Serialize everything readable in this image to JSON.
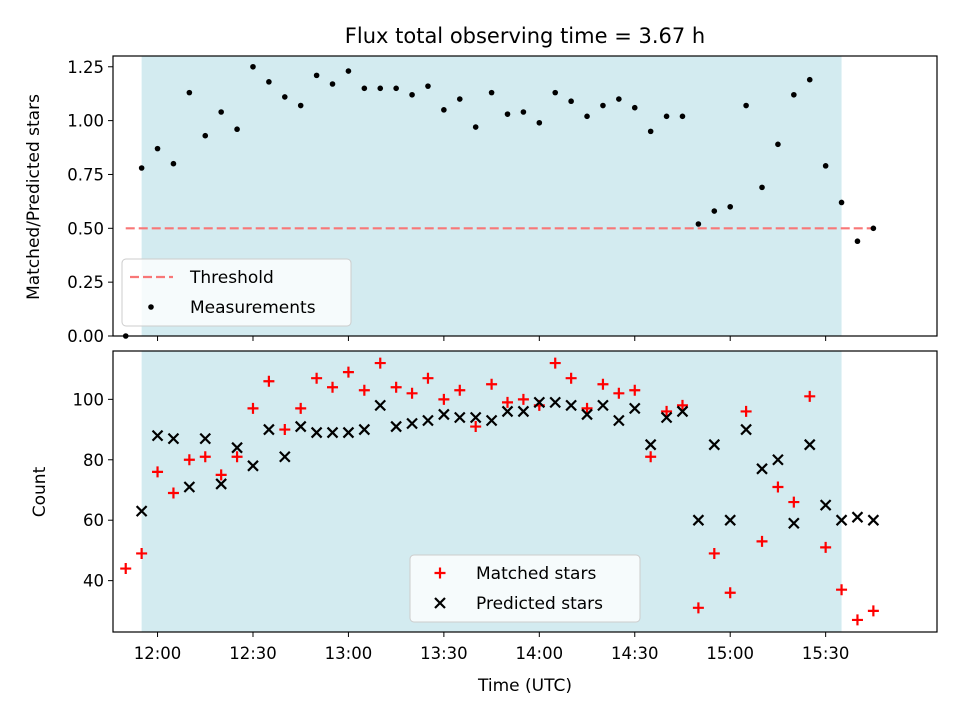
{
  "chart_data": [
    {
      "type": "scatter",
      "title": "Flux total observing time = 3.67 h",
      "xlabel": "",
      "ylabel": "Matched/Predicted stars",
      "xlim": [
        "11:46",
        "16:05"
      ],
      "ylim": [
        0,
        1.3
      ],
      "yticks": [
        "0.00",
        "0.25",
        "0.50",
        "0.75",
        "1.00",
        "1.25"
      ],
      "shaded_span": [
        "11:55",
        "15:35"
      ],
      "shaded_color": "#d3ebf0",
      "threshold": {
        "name": "Threshold",
        "y": 0.5,
        "x": [
          "11:50",
          "15:45"
        ],
        "color": "#f87777"
      },
      "series": [
        {
          "name": "Measurements",
          "color": "#000000",
          "x": [
            "11:50",
            "11:55",
            "12:00",
            "12:05",
            "12:10",
            "12:15",
            "12:20",
            "12:25",
            "12:30",
            "12:35",
            "12:40",
            "12:45",
            "12:50",
            "12:55",
            "13:00",
            "13:05",
            "13:10",
            "13:15",
            "13:20",
            "13:25",
            "13:30",
            "13:35",
            "13:40",
            "13:45",
            "13:50",
            "13:55",
            "14:00",
            "14:05",
            "14:10",
            "14:15",
            "14:20",
            "14:25",
            "14:30",
            "14:35",
            "14:40",
            "14:45",
            "14:50",
            "14:55",
            "15:00",
            "15:05",
            "15:10",
            "15:15",
            "15:20",
            "15:25",
            "15:30",
            "15:35",
            "15:40",
            "15:45"
          ],
          "y": [
            0.0,
            0.78,
            0.87,
            0.8,
            1.13,
            0.93,
            1.04,
            0.96,
            1.25,
            1.18,
            1.11,
            1.07,
            1.21,
            1.17,
            1.23,
            1.15,
            1.15,
            1.15,
            1.12,
            1.16,
            1.05,
            1.1,
            0.97,
            1.13,
            1.03,
            1.04,
            0.99,
            1.13,
            1.09,
            1.02,
            1.07,
            1.1,
            1.06,
            0.95,
            1.02,
            1.02,
            0.52,
            0.58,
            0.6,
            1.07,
            0.69,
            0.89,
            1.12,
            1.19,
            0.79,
            0.62,
            0.44,
            0.5
          ]
        }
      ],
      "legend": {
        "placement": "lower-left",
        "entries": [
          "Threshold",
          "Measurements"
        ]
      }
    },
    {
      "type": "scatter",
      "title": "",
      "xlabel": "Time (UTC)",
      "ylabel": "Count",
      "xlim": [
        "11:46",
        "16:05"
      ],
      "ylim": [
        23,
        116
      ],
      "yticks": [
        "40",
        "60",
        "80",
        "100"
      ],
      "xticks": [
        "12:00",
        "12:30",
        "13:00",
        "13:30",
        "14:00",
        "14:30",
        "15:00",
        "15:30"
      ],
      "shaded_span": [
        "11:55",
        "15:35"
      ],
      "shaded_color": "#d3ebf0",
      "series": [
        {
          "name": "Matched stars",
          "marker": "plus",
          "color": "#ff0000",
          "x": [
            "11:50",
            "11:55",
            "12:00",
            "12:05",
            "12:10",
            "12:15",
            "12:20",
            "12:25",
            "12:30",
            "12:35",
            "12:40",
            "12:45",
            "12:50",
            "12:55",
            "13:00",
            "13:05",
            "13:10",
            "13:15",
            "13:20",
            "13:25",
            "13:30",
            "13:35",
            "13:40",
            "13:45",
            "13:50",
            "13:55",
            "14:00",
            "14:05",
            "14:10",
            "14:15",
            "14:20",
            "14:25",
            "14:30",
            "14:35",
            "14:40",
            "14:45",
            "14:50",
            "14:55",
            "15:00",
            "15:05",
            "15:10",
            "15:15",
            "15:20",
            "15:25",
            "15:30",
            "15:35",
            "15:40",
            "15:45"
          ],
          "y": [
            44,
            49,
            76,
            69,
            80,
            81,
            75,
            81,
            97,
            106,
            90,
            97,
            107,
            104,
            109,
            103,
            112,
            104,
            102,
            107,
            100,
            103,
            91,
            105,
            99,
            100,
            98,
            112,
            107,
            97,
            105,
            102,
            103,
            81,
            96,
            98,
            31,
            49,
            36,
            96,
            53,
            71,
            66,
            101,
            51,
            37,
            27,
            30
          ]
        },
        {
          "name": "Predicted stars",
          "marker": "x",
          "color": "#000000",
          "x": [
            "11:55",
            "12:00",
            "12:05",
            "12:10",
            "12:15",
            "12:20",
            "12:25",
            "12:30",
            "12:35",
            "12:40",
            "12:45",
            "12:50",
            "12:55",
            "13:00",
            "13:05",
            "13:10",
            "13:15",
            "13:20",
            "13:25",
            "13:30",
            "13:35",
            "13:40",
            "13:45",
            "13:50",
            "13:55",
            "14:00",
            "14:05",
            "14:10",
            "14:15",
            "14:20",
            "14:25",
            "14:30",
            "14:35",
            "14:40",
            "14:45",
            "14:50",
            "14:55",
            "15:00",
            "15:05",
            "15:10",
            "15:15",
            "15:20",
            "15:25",
            "15:30",
            "15:35",
            "15:40",
            "15:45"
          ],
          "y": [
            63,
            88,
            87,
            71,
            87,
            72,
            84,
            78,
            90,
            81,
            91,
            89,
            89,
            89,
            90,
            98,
            91,
            92,
            93,
            95,
            94,
            94,
            93,
            96,
            96,
            99,
            99,
            98,
            95,
            98,
            93,
            97,
            85,
            94,
            96,
            60,
            85,
            60,
            90,
            77,
            80,
            59,
            85,
            65,
            60,
            61,
            60
          ]
        }
      ],
      "legend": {
        "placement": "lower-center",
        "entries": [
          "Matched stars",
          "Predicted stars"
        ]
      }
    }
  ]
}
